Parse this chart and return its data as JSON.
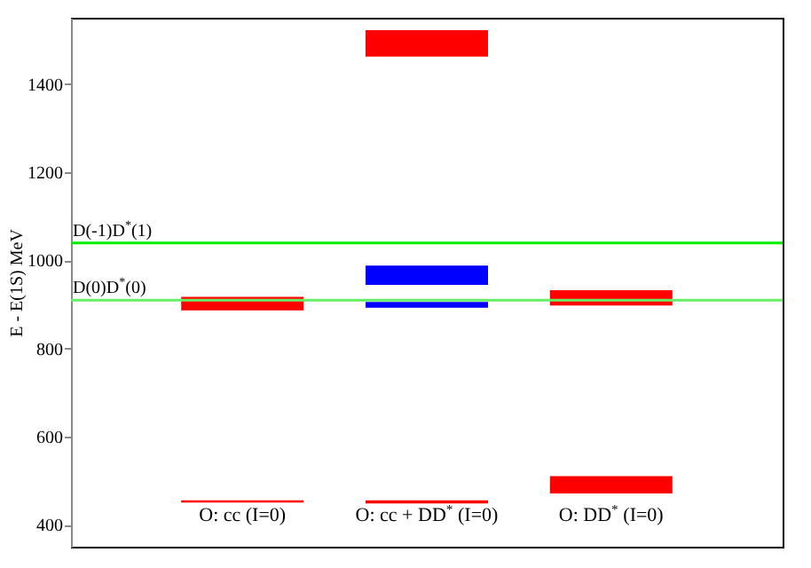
{
  "chart_data": {
    "type": "bar",
    "ylabel": "E - E(1S) MeV",
    "categories": [
      "O: cc (I=0)",
      "O: cc + DD$^{*}$ (I=0)",
      "O: DD$^{*}$ (I=0)"
    ],
    "series": [
      {
        "color": "#ff0000",
        "base": [
          450,
          448,
          471
        ],
        "values": [
          5,
          7,
          39
        ]
      },
      {
        "color": "#ff0000",
        "base": [
          886,
          1462,
          897
        ],
        "values": [
          31,
          60,
          35
        ]
      },
      {
        "color": "#0000ff",
        "base": [
          null,
          944,
          null
        ],
        "values": [
          null,
          44,
          null
        ]
      },
      {
        "color": "#0000ff",
        "base": [
          null,
          892,
          null
        ],
        "values": [
          null,
          13,
          null
        ]
      }
    ],
    "ylim": [
      350,
      1550
    ],
    "yticks": [
      400,
      600,
      800,
      1000,
      1200,
      1400
    ],
    "grid": false,
    "ref_lines": [
      {
        "axis": "y",
        "value": 1039,
        "label": "D(-1)D$^{*}$(1)",
        "color": "#00ee00"
      },
      {
        "axis": "y",
        "value": 909,
        "label": "D(0)D$^{*}$(0)",
        "color": "#66ee66"
      }
    ]
  }
}
